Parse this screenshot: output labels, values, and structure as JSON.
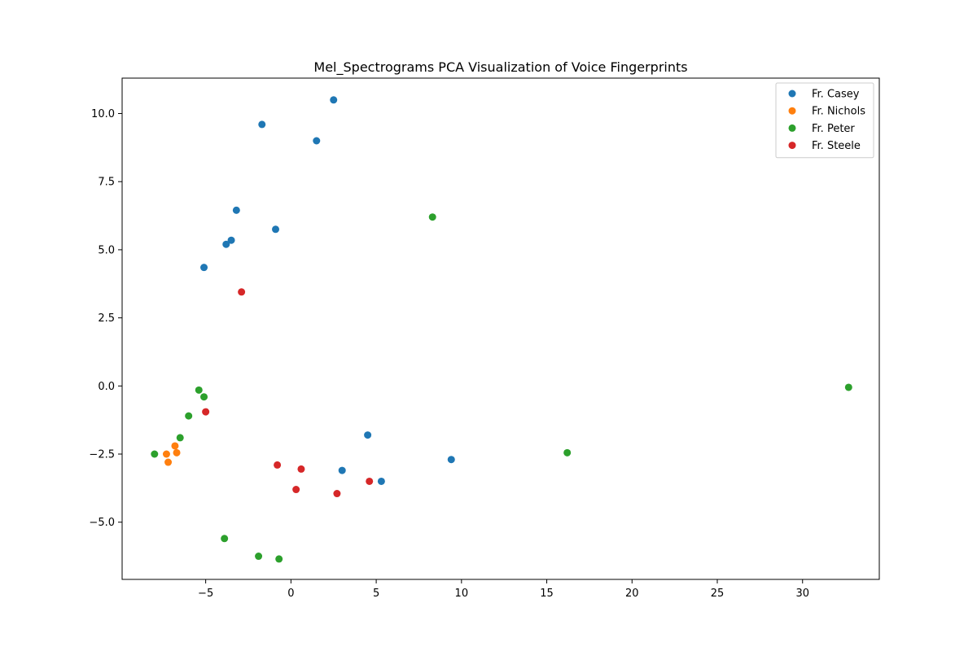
{
  "chart_data": {
    "type": "scatter",
    "title": "Mel_Spectrograms PCA Visualization of Voice Fingerprints",
    "xlabel": "",
    "ylabel": "",
    "xlim": [
      -9.9,
      34.5
    ],
    "ylim": [
      -7.1,
      11.3
    ],
    "xticks": [
      -5,
      0,
      5,
      10,
      15,
      20,
      25,
      30
    ],
    "xtick_labels": [
      "−5",
      "0",
      "5",
      "10",
      "15",
      "20",
      "25",
      "30"
    ],
    "yticks": [
      -5.0,
      -2.5,
      0.0,
      2.5,
      5.0,
      7.5,
      10.0
    ],
    "ytick_labels": [
      "−5.0",
      "−2.5",
      "0.0",
      "2.5",
      "5.0",
      "7.5",
      "10.0"
    ],
    "grid": false,
    "legend_position": "top-right",
    "series": [
      {
        "name": "Fr. Casey",
        "color": "#1f77b4",
        "points": [
          {
            "x": 2.5,
            "y": 10.5
          },
          {
            "x": -1.7,
            "y": 9.6
          },
          {
            "x": 1.5,
            "y": 9.0
          },
          {
            "x": -3.2,
            "y": 6.45
          },
          {
            "x": -0.9,
            "y": 5.75
          },
          {
            "x": -3.5,
            "y": 5.35
          },
          {
            "x": -3.8,
            "y": 5.2
          },
          {
            "x": -5.1,
            "y": 4.35
          },
          {
            "x": 4.5,
            "y": -1.8
          },
          {
            "x": 9.4,
            "y": -2.7
          },
          {
            "x": 3.0,
            "y": -3.1
          },
          {
            "x": 5.3,
            "y": -3.5
          }
        ]
      },
      {
        "name": "Fr. Nichols",
        "color": "#ff7f0e",
        "points": [
          {
            "x": -6.8,
            "y": -2.2
          },
          {
            "x": -7.3,
            "y": -2.5
          },
          {
            "x": -6.7,
            "y": -2.45
          },
          {
            "x": -7.2,
            "y": -2.8
          }
        ]
      },
      {
        "name": "Fr. Peter",
        "color": "#2ca02c",
        "points": [
          {
            "x": 8.3,
            "y": 6.2
          },
          {
            "x": -5.4,
            "y": -0.15
          },
          {
            "x": -5.1,
            "y": -0.4
          },
          {
            "x": -6.0,
            "y": -1.1
          },
          {
            "x": -6.5,
            "y": -1.9
          },
          {
            "x": -8.0,
            "y": -2.5
          },
          {
            "x": 32.7,
            "y": -0.05
          },
          {
            "x": 16.2,
            "y": -2.45
          },
          {
            "x": -3.9,
            "y": -5.6
          },
          {
            "x": -1.9,
            "y": -6.25
          },
          {
            "x": -0.7,
            "y": -6.35
          }
        ]
      },
      {
        "name": "Fr. Steele",
        "color": "#d62728",
        "points": [
          {
            "x": -2.9,
            "y": 3.45
          },
          {
            "x": -5.0,
            "y": -0.95
          },
          {
            "x": -0.8,
            "y": -2.9
          },
          {
            "x": 0.6,
            "y": -3.05
          },
          {
            "x": 0.3,
            "y": -3.8
          },
          {
            "x": 2.7,
            "y": -3.95
          },
          {
            "x": 4.6,
            "y": -3.5
          }
        ]
      }
    ]
  }
}
